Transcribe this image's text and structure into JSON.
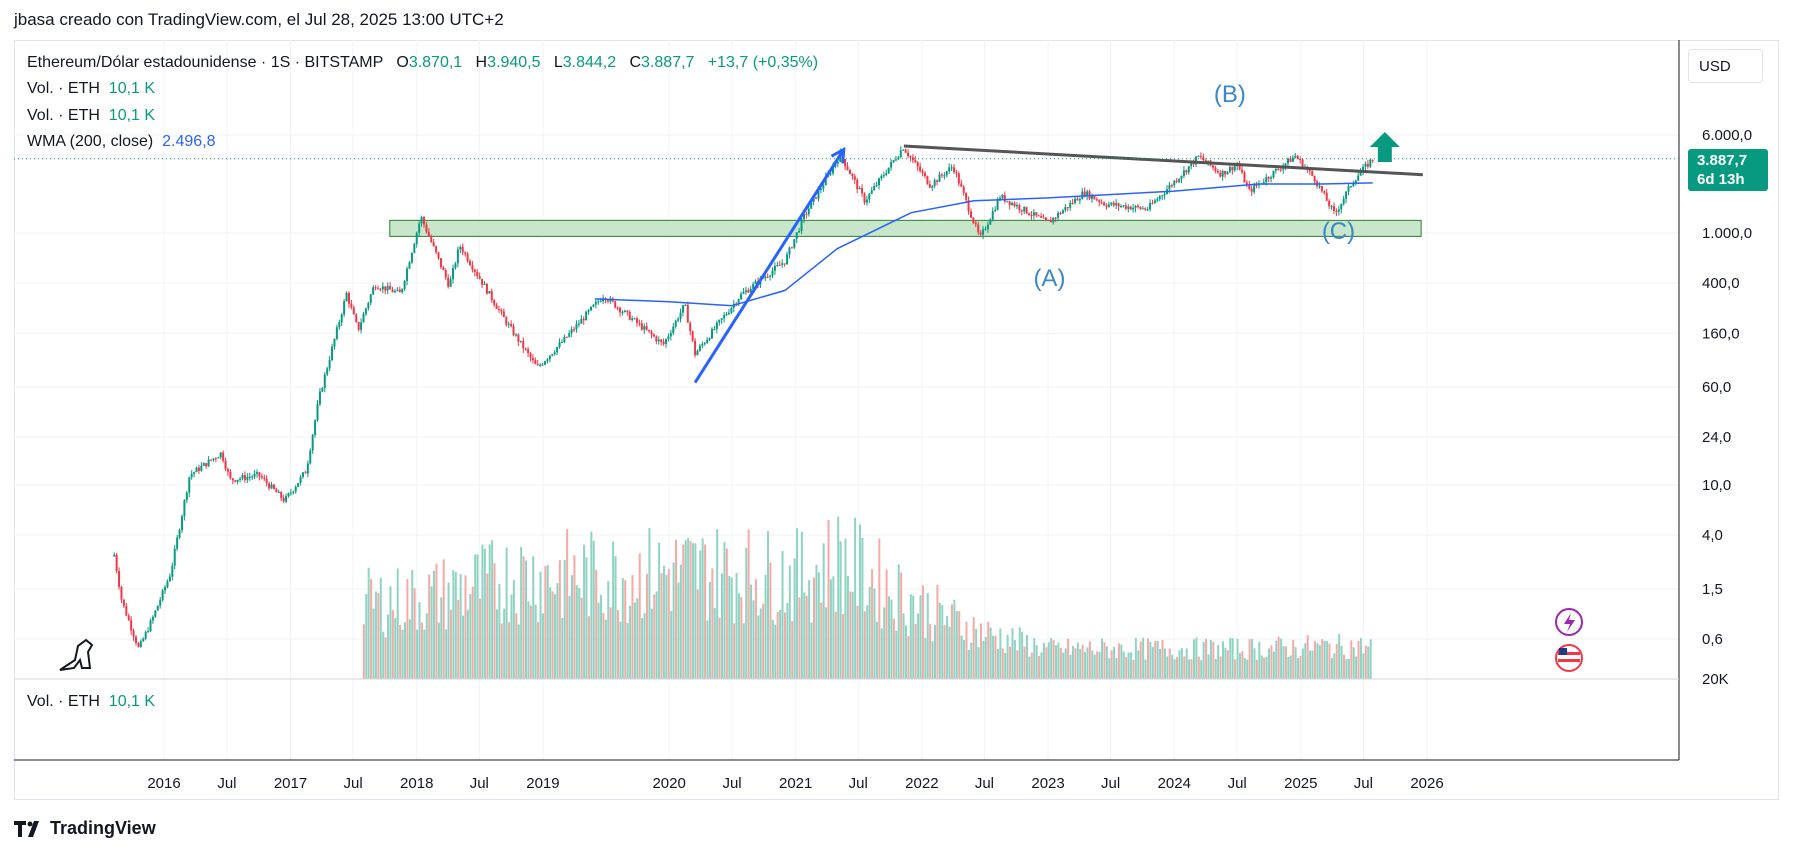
{
  "header": {
    "text": "jbasa creado con TradingView.com, el Jul 28, 2025 13:00 UTC+2"
  },
  "legend": {
    "symbol": "Ethereum/Dólar estadounidense · 1S · BITSTAMP",
    "o_label": "O",
    "o_value": "3.870,1",
    "h_label": "H",
    "h_value": "3.940,5",
    "l_label": "L",
    "l_value": "3.844,2",
    "c_label": "C",
    "c_value": "3.887,7",
    "change": "+13,7 (+0,35%)",
    "vol_label": "Vol. · ETH",
    "vol_value": "10,1 K",
    "wma_label": "WMA (200, close)",
    "wma_value": "2.496,8"
  },
  "price_axis": {
    "currency": "USD",
    "ticks": [
      "6.000,0",
      "1.000,0",
      "400,0",
      "160,0",
      "60,0",
      "24,0",
      "10,0",
      "4,0",
      "1,5",
      "0,6",
      "20K"
    ],
    "last_price": "3.887,7",
    "countdown": "6d 13h"
  },
  "time_axis": {
    "ticks": [
      "2016",
      "Jul",
      "2017",
      "Jul",
      "2018",
      "Jul",
      "2019",
      "2020",
      "Jul",
      "2021",
      "Jul",
      "2022",
      "Jul",
      "2023",
      "Jul",
      "2024",
      "Jul",
      "2025",
      "Jul",
      "2026"
    ]
  },
  "annotations": {
    "wave_a": "(A)",
    "wave_b": "(B)",
    "wave_c": "(C)"
  },
  "footer": {
    "brand": "TradingView"
  },
  "colors": {
    "up": "#089981",
    "down": "#f23645",
    "wma": "#2962ff",
    "trend": "#2962ff",
    "resistance": "#555555",
    "support_zone": "#c8e6c9",
    "wave_label": "#3a87c8"
  },
  "chart_data": {
    "type": "candlestick",
    "scale": "log",
    "title": "Ethereum/Dólar estadounidense · 1S · BITSTAMP",
    "anchors": [
      [
        "2015-08-10",
        2.8
      ],
      [
        "2015-09-01",
        1.2
      ],
      [
        "2015-10-20",
        0.5
      ],
      [
        "2015-12-01",
        0.9
      ],
      [
        "2016-01-20",
        2.0
      ],
      [
        "2016-03-15",
        12.0
      ],
      [
        "2016-06-15",
        18.0
      ],
      [
        "2016-07-10",
        11.0
      ],
      [
        "2016-10-01",
        12.0
      ],
      [
        "2016-12-15",
        7.5
      ],
      [
        "2017-02-15",
        13.0
      ],
      [
        "2017-03-25",
        50.0
      ],
      [
        "2017-06-12",
        330.0
      ],
      [
        "2017-07-15",
        170.0
      ],
      [
        "2017-09-01",
        390.0
      ],
      [
        "2017-11-15",
        330.0
      ],
      [
        "2018-01-13",
        1350.0
      ],
      [
        "2018-04-05",
        380.0
      ],
      [
        "2018-05-05",
        800.0
      ],
      [
        "2018-09-15",
        200.0
      ],
      [
        "2018-12-15",
        85.0
      ],
      [
        "2019-03-01",
        140.0
      ],
      [
        "2019-06-25",
        320.0
      ],
      [
        "2019-12-15",
        130.0
      ],
      [
        "2020-02-15",
        270.0
      ],
      [
        "2020-03-16",
        110.0
      ],
      [
        "2020-07-25",
        320.0
      ],
      [
        "2020-12-01",
        600.0
      ],
      [
        "2021-01-25",
        1350.0
      ],
      [
        "2021-05-10",
        4200.0
      ],
      [
        "2021-07-20",
        1800.0
      ],
      [
        "2021-11-08",
        4800.0
      ],
      [
        "2022-01-25",
        2400.0
      ],
      [
        "2022-04-01",
        3400.0
      ],
      [
        "2022-06-18",
        900.0
      ],
      [
        "2022-08-15",
        1950.0
      ],
      [
        "2022-12-31",
        1200.0
      ],
      [
        "2023-04-15",
        2100.0
      ],
      [
        "2023-06-15",
        1700.0
      ],
      [
        "2023-10-15",
        1550.0
      ],
      [
        "2024-03-12",
        4050.0
      ],
      [
        "2024-05-15",
        2950.0
      ],
      [
        "2024-07-01",
        3500.0
      ],
      [
        "2024-08-05",
        2150.0
      ],
      [
        "2024-12-16",
        4100.0
      ],
      [
        "2025-02-10",
        2700.0
      ],
      [
        "2025-04-09",
        1400.0
      ],
      [
        "2025-06-01",
        2600.0
      ],
      [
        "2025-07-28",
        3887.7
      ]
    ],
    "volume_peaks": [
      [
        "2017-06-01",
        0.6
      ],
      [
        "2018-01-13",
        0.65
      ],
      [
        "2018-10-15",
        0.85
      ],
      [
        "2019-06-25",
        0.85
      ],
      [
        "2020-03-16",
        0.9
      ],
      [
        "2021-01-11",
        0.85
      ],
      [
        "2021-05-10",
        1.0
      ],
      [
        "2021-12-15",
        0.6
      ],
      [
        "2022-06-18",
        0.35
      ],
      [
        "2023-01-01",
        0.2
      ],
      [
        "2024-08-05",
        0.2
      ],
      [
        "2025-02-03",
        0.22
      ]
    ],
    "wma_points": [
      [
        "2019-06-01",
        300.0
      ],
      [
        "2020-01-01",
        285.0
      ],
      [
        "2020-07-01",
        265.0
      ],
      [
        "2020-12-01",
        350.0
      ],
      [
        "2021-05-01",
        750.0
      ],
      [
        "2021-12-01",
        1450.0
      ],
      [
        "2022-06-01",
        1800.0
      ],
      [
        "2023-01-01",
        1900.0
      ],
      [
        "2024-01-01",
        2150.0
      ],
      [
        "2024-09-01",
        2450.0
      ],
      [
        "2025-03-01",
        2450.0
      ],
      [
        "2025-07-28",
        2496.8
      ]
    ],
    "trendline": {
      "from": [
        "2020-03-16",
        65.0
      ],
      "to": [
        "2021-05-20",
        4600.0
      ]
    },
    "resistance_line": {
      "from": [
        "2021-11-10",
        4900.0
      ],
      "to": [
        "2025-12-20",
        2900.0
      ]
    },
    "support_zone": {
      "from": "2017-10-15",
      "to": "2025-12-15",
      "low": 940.0,
      "high": 1260.0
    }
  }
}
